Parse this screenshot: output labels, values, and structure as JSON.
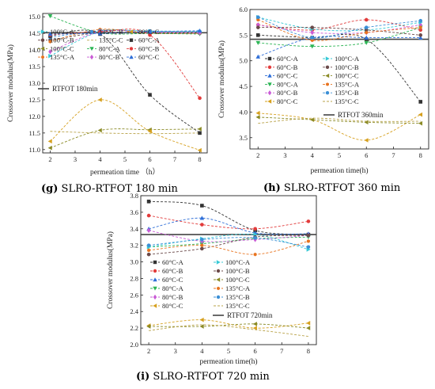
{
  "captions": [
    {
      "letter": "(g)",
      "text": " SLRO-RTFOT 180 min"
    },
    {
      "letter": "(h)",
      "text": " SLRO-RTFOT 360 min"
    },
    {
      "letter": "(i)",
      "text": " SLRO-RTFOT 720 min"
    }
  ],
  "chart_data": [
    {
      "type": "line",
      "panel": "g",
      "xlabel": "permeation time （h）",
      "ylabel": "Crossover modulus(MPa)",
      "xlim": [
        1.7,
        8.3
      ],
      "ylim": [
        10.9,
        15.1
      ],
      "xticks": [
        2,
        3,
        4,
        5,
        6,
        7,
        8
      ],
      "yticks": [
        11.0,
        11.5,
        12.0,
        12.5,
        13.0,
        13.5,
        14.0,
        14.5,
        15.0
      ],
      "x": [
        2,
        4,
        6,
        8
      ],
      "legend_columns": 3,
      "reference_line": {
        "name": "RTFOT 180min",
        "value": 14.52,
        "color": "#444444"
      },
      "series": [
        {
          "name": "100°C-A",
          "color": "#37c9d6",
          "marker": "triangle-right",
          "values": [
            13.82,
            14.55,
            14.56,
            14.55
          ]
        },
        {
          "name": "100°C-B",
          "color": "#6b4a4a",
          "marker": "circle",
          "values": [
            14.3,
            14.52,
            14.52,
            14.5
          ]
        },
        {
          "name": "100°C-C",
          "color": "#8a8a25",
          "marker": "triangle-left",
          "values": [
            11.05,
            11.58,
            11.6,
            11.62
          ]
        },
        {
          "name": "135°C-A",
          "color": "#e8731e",
          "marker": "hexagon",
          "values": [
            14.25,
            14.62,
            14.5,
            14.5
          ]
        },
        {
          "name": "135°C-B",
          "color": "#3b8fd6",
          "marker": "circle",
          "values": [
            14.38,
            14.58,
            14.57,
            14.56
          ]
        },
        {
          "name": "135°C-C",
          "color": "#b9a34a",
          "marker": "none",
          "values": [
            11.55,
            11.5,
            11.48,
            11.5
          ]
        },
        {
          "name": "80°C-A",
          "color": "#2db556",
          "marker": "triangle-down",
          "values": [
            15.02,
            14.52,
            14.5,
            14.48
          ]
        },
        {
          "name": "80°C-B",
          "color": "#c95cd6",
          "marker": "diamond",
          "values": [
            13.95,
            14.55,
            14.53,
            14.52
          ]
        },
        {
          "name": "80°C-C",
          "color": "#d6a01e",
          "marker": "triangle-left",
          "values": [
            11.25,
            12.5,
            11.55,
            10.98
          ]
        },
        {
          "name": "60°C-A",
          "color": "#333333",
          "marker": "square",
          "values": [
            14.42,
            14.48,
            12.65,
            11.5
          ]
        },
        {
          "name": "60°C-B",
          "color": "#e23b3b",
          "marker": "circle",
          "values": [
            14.45,
            14.55,
            14.45,
            12.55
          ]
        },
        {
          "name": "60°C-C",
          "color": "#2f6fd8",
          "marker": "triangle-up",
          "values": [
            14.48,
            14.5,
            14.55,
            14.58
          ]
        }
      ]
    },
    {
      "type": "line",
      "panel": "h",
      "xlabel": "permeation time(h)",
      "ylabel": "Crossover modulus(MPa)",
      "xlim": [
        1.7,
        8.3
      ],
      "ylim": [
        3.28,
        6.0
      ],
      "xticks": [
        2,
        3,
        4,
        5,
        6,
        7,
        8
      ],
      "yticks": [
        3.5,
        4.0,
        4.5,
        5.0,
        5.5,
        6.0
      ],
      "x": [
        2,
        4,
        6,
        8
      ],
      "legend_columns": 2,
      "reference_line": {
        "name": "RTFOT 360min",
        "value": 5.42,
        "color": "#444444"
      },
      "series": [
        {
          "name": "60°C-A",
          "color": "#333333",
          "marker": "square",
          "values": [
            5.5,
            5.45,
            5.42,
            4.2
          ]
        },
        {
          "name": "60°C-B",
          "color": "#e23b3b",
          "marker": "circle",
          "values": [
            5.7,
            5.6,
            5.8,
            5.6
          ]
        },
        {
          "name": "60°C-C",
          "color": "#2f6fd8",
          "marker": "triangle-up",
          "values": [
            5.08,
            5.45,
            5.45,
            5.45
          ]
        },
        {
          "name": "80°C-A",
          "color": "#2db556",
          "marker": "triangle-down",
          "values": [
            5.35,
            5.28,
            5.35,
            5.65
          ]
        },
        {
          "name": "80°C-B",
          "color": "#c95cd6",
          "marker": "diamond",
          "values": [
            5.7,
            5.55,
            5.55,
            5.7
          ]
        },
        {
          "name": "80°C-C",
          "color": "#d6a01e",
          "marker": "triangle-left",
          "values": [
            3.98,
            3.85,
            3.45,
            3.95
          ]
        },
        {
          "name": "100°C-A",
          "color": "#37c9d6",
          "marker": "triangle-right",
          "values": [
            5.85,
            5.62,
            5.6,
            5.75
          ]
        },
        {
          "name": "100°C-B",
          "color": "#6b4a4a",
          "marker": "circle",
          "values": [
            5.65,
            5.65,
            5.6,
            5.5
          ]
        },
        {
          "name": "100°C-C",
          "color": "#8a8a25",
          "marker": "triangle-left",
          "values": [
            3.9,
            3.85,
            3.8,
            3.78
          ]
        },
        {
          "name": "135°C-A",
          "color": "#e8731e",
          "marker": "hexagon",
          "values": [
            5.8,
            5.4,
            5.55,
            5.65
          ]
        },
        {
          "name": "135°C-B",
          "color": "#3b8fd6",
          "marker": "circle",
          "values": [
            5.85,
            5.45,
            5.65,
            5.78
          ]
        },
        {
          "name": "135°C-C",
          "color": "#b9a34a",
          "marker": "none",
          "values": [
            3.78,
            3.88,
            3.82,
            3.82
          ]
        }
      ]
    },
    {
      "type": "line",
      "panel": "i",
      "xlabel": "permeation time(h)",
      "ylabel": "Crossover modulus(MPa)",
      "xlim": [
        1.7,
        8.3
      ],
      "ylim": [
        2.0,
        3.8
      ],
      "xticks": [
        2,
        3,
        4,
        5,
        6,
        7,
        8
      ],
      "yticks": [
        2.0,
        2.2,
        2.4,
        2.6,
        2.8,
        3.0,
        3.2,
        3.4,
        3.6,
        3.8
      ],
      "x": [
        2,
        4,
        6,
        8
      ],
      "legend_columns": 2,
      "reference_line": {
        "name": "RTFOT 720min",
        "value": 3.33,
        "color": "#444444"
      },
      "series": [
        {
          "name": "60°C-A",
          "color": "#333333",
          "marker": "square",
          "values": [
            3.73,
            3.68,
            3.38,
            3.33
          ]
        },
        {
          "name": "60°C-B",
          "color": "#e23b3b",
          "marker": "circle",
          "values": [
            3.56,
            3.45,
            3.4,
            3.49
          ]
        },
        {
          "name": "60°C-C",
          "color": "#2f6fd8",
          "marker": "triangle-up",
          "values": [
            3.4,
            3.53,
            3.35,
            3.34
          ]
        },
        {
          "name": "80°C-A",
          "color": "#2db556",
          "marker": "triangle-down",
          "values": [
            3.18,
            3.22,
            3.28,
            3.3
          ]
        },
        {
          "name": "80°C-B",
          "color": "#c95cd6",
          "marker": "diamond",
          "values": [
            3.38,
            3.25,
            3.27,
            3.32
          ]
        },
        {
          "name": "80°C-C",
          "color": "#d6a01e",
          "marker": "triangle-left",
          "values": [
            2.23,
            2.3,
            2.2,
            2.26
          ]
        },
        {
          "name": "100°C-A",
          "color": "#37c9d6",
          "marker": "triangle-right",
          "values": [
            3.18,
            3.28,
            3.33,
            3.15
          ]
        },
        {
          "name": "100°C-B",
          "color": "#6b4a4a",
          "marker": "circle",
          "values": [
            3.09,
            3.16,
            3.3,
            3.32
          ]
        },
        {
          "name": "100°C-C",
          "color": "#8a8a25",
          "marker": "triangle-left",
          "values": [
            2.22,
            2.22,
            2.25,
            2.2
          ]
        },
        {
          "name": "135°C-A",
          "color": "#e8731e",
          "marker": "hexagon",
          "values": [
            3.14,
            3.2,
            3.09,
            3.25
          ]
        },
        {
          "name": "135°C-B",
          "color": "#3b8fd6",
          "marker": "circle",
          "values": [
            3.2,
            3.27,
            3.29,
            3.18
          ]
        },
        {
          "name": "135°C-C",
          "color": "#b9a34a",
          "marker": "none",
          "values": [
            2.17,
            2.24,
            2.18,
            2.1
          ]
        }
      ]
    }
  ]
}
